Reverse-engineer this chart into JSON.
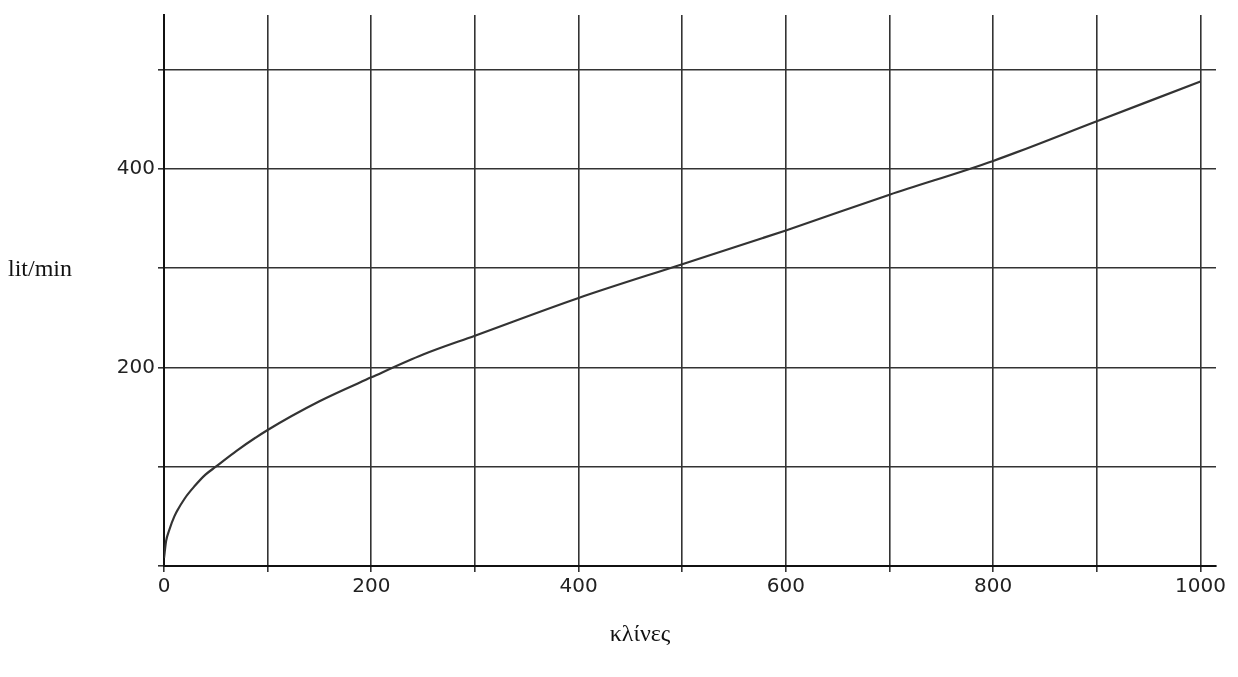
{
  "chart_data": {
    "type": "line",
    "xlabel": "κλίνες",
    "ylabel": "lit/min",
    "x": [
      0,
      2,
      5,
      10,
      20,
      30,
      40,
      50,
      70,
      100,
      150,
      200,
      250,
      300,
      400,
      500,
      600,
      700,
      800,
      900,
      1000
    ],
    "series": [
      {
        "color": "#333333",
        "values": [
          8,
          25,
          36,
          50,
          68,
          81,
          92,
          100,
          116,
          137,
          166,
          190,
          213,
          232,
          270,
          304,
          338,
          374,
          408,
          448,
          488
        ]
      }
    ],
    "xlim": [
      0,
      1015
    ],
    "ylim": [
      0,
      555
    ],
    "xticks": [
      0,
      {
        "value": 100,
        "label": null
      },
      200,
      {
        "value": 300,
        "label": null
      },
      400,
      {
        "value": 500,
        "label": null
      },
      600,
      {
        "value": 700,
        "label": null
      },
      800,
      {
        "value": 900,
        "label": null
      },
      1000
    ],
    "yticks": [
      {
        "value": 0,
        "label": null
      },
      {
        "value": 100,
        "label": null
      },
      200,
      {
        "value": 300,
        "label": null
      },
      400,
      {
        "value": 500,
        "label": null
      }
    ],
    "grid": true,
    "legend": false,
    "marker": "none",
    "line_style": "solid"
  }
}
